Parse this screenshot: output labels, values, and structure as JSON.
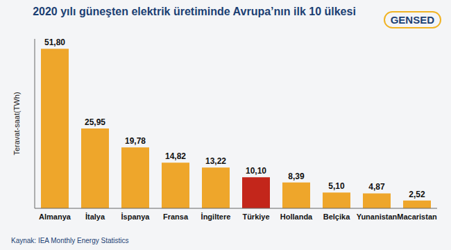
{
  "chart_data": {
    "type": "bar",
    "title": "2020 yılı güneşten elektrik üretiminde Avrupa’nın ilk 10 ülkesi",
    "y_label": "Teravat-saat(TWh)",
    "annotations": [
      "Kaynak: IEA Monthly Energy Statistics",
      "GENSED"
    ],
    "categories": [
      "Almanya",
      "İtalya",
      "İspanya",
      "Fransa",
      "İngiltere",
      "Türkiye",
      "Hollanda",
      "Belçika",
      "Yunanistan",
      "Macaristan"
    ],
    "values": [
      51.8,
      25.95,
      19.78,
      14.82,
      13.22,
      10.1,
      8.39,
      5.1,
      4.87,
      2.52
    ],
    "value_labels": [
      "51,80",
      "25,95",
      "19,78",
      "14,82",
      "13,22",
      "10,10",
      "8,39",
      "5,10",
      "4,87",
      "2,52"
    ],
    "colors": [
      "#eea62b",
      "#eea62b",
      "#eea62b",
      "#eea62b",
      "#eea62b",
      "#c3261b",
      "#eea62b",
      "#eea62b",
      "#eea62b",
      "#eea62b"
    ],
    "ylim": [
      0,
      55
    ],
    "data_labels": true,
    "tick_labels": "x"
  }
}
